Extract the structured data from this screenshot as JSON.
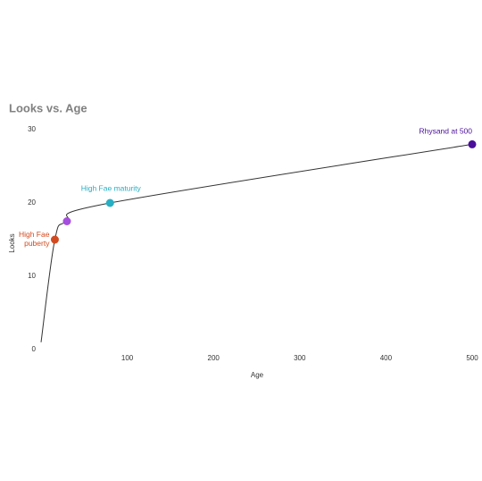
{
  "chart_data": {
    "type": "line",
    "title": "Looks vs. Age",
    "x_label": "Age",
    "y_label": "Looks",
    "x": [
      0,
      16,
      30,
      80,
      500
    ],
    "series": [
      {
        "values": [
          1,
          15,
          17.5,
          20,
          28
        ],
        "color": "#333333",
        "point_colors": [
          null,
          "#d24a20",
          "#a54fdf",
          "#27afc4",
          "#4a0e9a"
        ],
        "point_labels": [
          null,
          "High Fae\npuberty",
          null,
          "High Fae maturity",
          "Rhysand at 500"
        ]
      }
    ],
    "xlim": [
      0,
      500
    ],
    "xticks": [
      100,
      200,
      300,
      400,
      500
    ],
    "ylim": [
      0,
      30
    ],
    "yticks": [
      0,
      10,
      20,
      30
    ],
    "grid": false
  }
}
